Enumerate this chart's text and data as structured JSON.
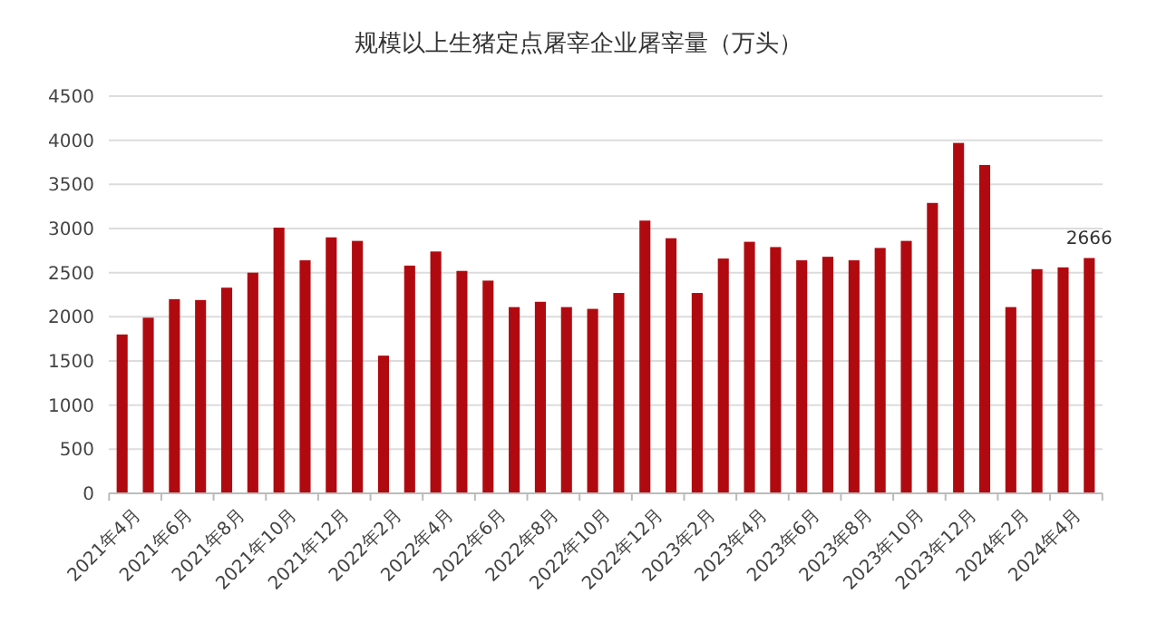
{
  "chart_data": {
    "type": "bar",
    "title": "规模以上生猪定点屠宰企业屠宰量（万头）",
    "categories": [
      "2021年4月",
      null,
      "2021年6月",
      null,
      "2021年8月",
      null,
      "2021年10月",
      null,
      "2021年12月",
      null,
      "2022年2月",
      null,
      "2022年4月",
      null,
      "2022年6月",
      null,
      "2022年8月",
      null,
      "2022年10月",
      null,
      "2022年12月",
      null,
      "2023年2月",
      null,
      "2023年4月",
      null,
      "2023年6月",
      null,
      "2023年8月",
      null,
      "2023年10月",
      null,
      "2023年12月",
      null,
      "2024年2月",
      null,
      "2024年4月",
      null
    ],
    "values": [
      1800,
      1990,
      2200,
      2190,
      2330,
      2500,
      3010,
      2640,
      2900,
      2860,
      1560,
      2580,
      2740,
      2520,
      2410,
      2110,
      2170,
      2110,
      2090,
      2270,
      3090,
      2890,
      2270,
      2660,
      2850,
      2790,
      2640,
      2680,
      2640,
      2780,
      2860,
      3290,
      3970,
      3720,
      2110,
      2540,
      2560,
      2666
    ],
    "value_labels": [
      null,
      null,
      null,
      null,
      null,
      null,
      null,
      null,
      null,
      null,
      null,
      null,
      null,
      null,
      null,
      null,
      null,
      null,
      null,
      null,
      null,
      null,
      null,
      null,
      null,
      null,
      null,
      null,
      null,
      null,
      null,
      null,
      null,
      null,
      null,
      null,
      null,
      "2666"
    ],
    "color": "#b00a10",
    "ylim": [
      0,
      4500
    ],
    "yticks": [
      0,
      500,
      1000,
      1500,
      2000,
      2500,
      3000,
      3500,
      4000,
      4500
    ],
    "grid": "y"
  }
}
